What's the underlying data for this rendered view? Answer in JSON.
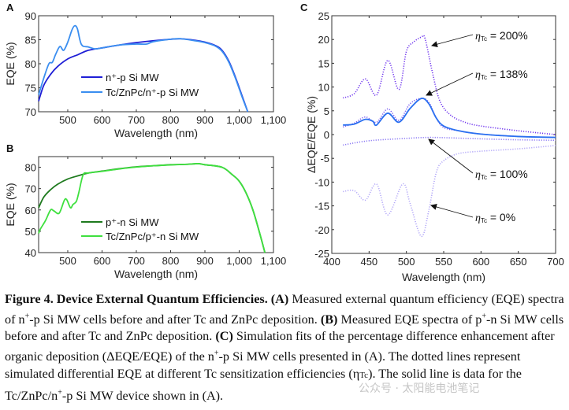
{
  "chart_data": [
    {
      "panel": "A",
      "type": "line",
      "xlabel": "Wavelength (nm)",
      "ylabel": "EQE (%)",
      "xlim": [
        415,
        1100
      ],
      "ylim": [
        70,
        90
      ],
      "xticks": [
        500,
        600,
        700,
        800,
        900,
        1000,
        1100
      ],
      "xtick_labels": [
        "500",
        "600",
        "700",
        "800",
        "900",
        "1,000",
        "1,100"
      ],
      "yticks": [
        70,
        75,
        80,
        85,
        90
      ],
      "legend_position": "center-left",
      "series": [
        {
          "name": "n⁺-p Si MW",
          "color": "#1f1fd6",
          "style": "solid",
          "x": [
            415,
            430,
            450,
            470,
            500,
            530,
            560,
            600,
            650,
            700,
            750,
            800,
            830,
            870,
            900,
            930,
            950,
            970,
            990,
            1010,
            1025
          ],
          "y": [
            72.2,
            75.5,
            77.8,
            79.4,
            81,
            81.9,
            82.8,
            83.3,
            83.9,
            84.4,
            84.8,
            85.1,
            85.2,
            84.9,
            84.5,
            83.8,
            82.8,
            80.5,
            77,
            73,
            70
          ]
        },
        {
          "name": "Tc/ZnPc/n⁺-p Si MW",
          "color": "#3a8ef0",
          "style": "solid",
          "x": [
            415,
            430,
            445,
            455,
            465,
            477,
            488,
            500,
            512,
            520,
            528,
            540,
            560,
            580,
            600,
            650,
            700,
            730,
            750,
            800,
            830,
            870,
            900,
            930,
            950,
            970,
            990,
            1010,
            1025
          ],
          "y": [
            73.5,
            77,
            80,
            80.3,
            82,
            83.6,
            82.8,
            84.5,
            87,
            87.9,
            87.3,
            84,
            83.5,
            83.1,
            83.3,
            83.9,
            84.1,
            84.1,
            84.6,
            85.1,
            85.2,
            84.8,
            84.4,
            83.7,
            82.6,
            80.3,
            76.8,
            72.8,
            70
          ]
        }
      ]
    },
    {
      "panel": "B",
      "type": "line",
      "xlabel": "Wavelength (nm)",
      "ylabel": "EQE (%)",
      "xlim": [
        415,
        1100
      ],
      "ylim": [
        40,
        85
      ],
      "xticks": [
        500,
        600,
        700,
        800,
        900,
        1000,
        1100
      ],
      "xtick_labels": [
        "500",
        "600",
        "700",
        "800",
        "900",
        "1,000",
        "1,100"
      ],
      "yticks": [
        40,
        50,
        60,
        70,
        80
      ],
      "legend_position": "center-left",
      "series": [
        {
          "name": "p⁺-n Si MW",
          "color": "#1e7a1e",
          "style": "solid",
          "x": [
            415,
            430,
            450,
            470,
            500,
            530,
            560,
            600,
            650,
            700,
            750,
            800,
            850,
            880,
            900,
            950,
            980,
            1000,
            1020,
            1040,
            1060,
            1075
          ],
          "y": [
            61,
            66,
            69.5,
            72,
            74.5,
            76,
            77.3,
            78.2,
            79.3,
            80.2,
            80.7,
            81.2,
            81.4,
            81.7,
            81.2,
            80,
            76.5,
            73.5,
            68,
            60,
            49,
            40
          ]
        },
        {
          "name": "Tc/ZnPc/p⁺-n Si MW",
          "color": "#3fe03f",
          "style": "solid",
          "x": [
            415,
            420,
            435,
            450,
            460,
            475,
            490,
            497,
            508,
            515,
            525,
            532,
            545,
            560,
            600,
            650,
            700,
            750,
            800,
            850,
            880,
            900,
            950,
            980,
            1000,
            1020,
            1040,
            1060,
            1075
          ],
          "y": [
            49,
            51,
            55,
            60,
            59.5,
            58.5,
            64.5,
            64.8,
            61,
            62.5,
            64,
            68,
            76.5,
            77.3,
            78.1,
            79.2,
            80.1,
            80.7,
            81.1,
            81.4,
            81.7,
            81.2,
            80,
            76.5,
            73.5,
            68,
            60,
            49,
            40
          ]
        }
      ]
    },
    {
      "panel": "C",
      "type": "line",
      "xlabel": "Wavelength (nm)",
      "ylabel": "ΔEQE/EQE (%)",
      "xlim": [
        400,
        700
      ],
      "ylim": [
        -25,
        25
      ],
      "xticks": [
        400,
        450,
        500,
        550,
        600,
        650,
        700
      ],
      "yticks": [
        -25,
        -20,
        -15,
        -10,
        -5,
        0,
        5,
        10,
        15,
        20,
        25
      ],
      "annotations": [
        {
          "label_prefix": "η",
          "label_sub": "Tc",
          "label_suffix": " = 200%",
          "target_series": "ηTc = 200%"
        },
        {
          "label_prefix": "η",
          "label_sub": "Tc",
          "label_suffix": " = 138%",
          "target_series": "ηTc = 138%"
        },
        {
          "label_prefix": "η",
          "label_sub": "Tc",
          "label_suffix": " = 100%",
          "target_series": "ηTc = 100%"
        },
        {
          "label_prefix": "η",
          "label_sub": "Tc",
          "label_suffix": " = 0%",
          "target_series": "ηTc = 0%"
        }
      ],
      "series": [
        {
          "name": "ηTc = 200%",
          "color": "#6f35ee",
          "style": "dotted",
          "x": [
            415,
            430,
            445,
            460,
            475,
            490,
            500,
            510,
            520,
            525,
            535,
            545,
            560,
            580,
            600,
            650,
            700
          ],
          "y": [
            7.7,
            8.6,
            11.7,
            8.3,
            15.6,
            9.5,
            17.5,
            19.5,
            20.5,
            20.2,
            13,
            7,
            4,
            2.5,
            1.8,
            0.8,
            0
          ]
        },
        {
          "name": "ηTc = 138%",
          "color": "#7b5cf0",
          "style": "dotted",
          "x": [
            415,
            430,
            445,
            460,
            475,
            490,
            505,
            520,
            530,
            540,
            550,
            570,
            600,
            650,
            700
          ],
          "y": [
            1.6,
            2.4,
            3.7,
            2.6,
            5.4,
            3,
            6.5,
            7.6,
            6.8,
            3.5,
            1.5,
            0.8,
            0.1,
            -0.4,
            -0.6
          ]
        },
        {
          "name": "Data (Tc/ZnPc/n⁺-p Si MW)",
          "color": "#2a6ff0",
          "style": "solid",
          "x": [
            415,
            430,
            445,
            455,
            460,
            475,
            490,
            505,
            520,
            530,
            540,
            550,
            570,
            600,
            650,
            700
          ],
          "y": [
            2,
            2.2,
            3.2,
            2.8,
            2,
            4.5,
            2.6,
            5.5,
            7.6,
            6.5,
            3.5,
            1.8,
            0.8,
            0.1,
            -0.4,
            -0.6
          ]
        },
        {
          "name": "ηTc = 100%",
          "color": "#8c7af4",
          "style": "dotted",
          "x": [
            415,
            450,
            500,
            530,
            560,
            600,
            650,
            700
          ],
          "y": [
            -2.2,
            -1.3,
            -0.8,
            -0.6,
            -0.7,
            -0.9,
            -1.1,
            -1.2
          ]
        },
        {
          "name": "ηTc = 0%",
          "color": "#b3a8f8",
          "style": "dotted",
          "x": [
            415,
            430,
            445,
            460,
            475,
            495,
            505,
            520,
            530,
            540,
            550,
            570,
            600,
            650,
            700
          ],
          "y": [
            -12,
            -11.8,
            -13.8,
            -10.4,
            -16.9,
            -10.4,
            -14.5,
            -21.4,
            -16,
            -8,
            -5.5,
            -4,
            -3.5,
            -3,
            -2.3
          ]
        }
      ]
    }
  ],
  "panels": {
    "A": {
      "label": "A",
      "ylabel": "EQE (%)",
      "xlabel": "Wavelength (nm)",
      "legend": [
        "n⁺-p Si MW",
        "Tc/ZnPc/n⁺-p Si MW"
      ]
    },
    "B": {
      "label": "B",
      "ylabel": "EQE (%)",
      "xlabel": "Wavelength (nm)",
      "legend": [
        "p⁺-n Si MW",
        "Tc/ZnPc/p⁺-n Si MW"
      ]
    },
    "C": {
      "label": "C",
      "ylabel": "ΔEQE/EQE (%)",
      "xlabel": "Wavelength (nm)"
    }
  },
  "caption": {
    "title": "Figure 4. Device External Quantum Efficiencies.",
    "text_html_parts": [
      {
        "b": "(A)"
      },
      {
        "t": " Measured external quantum efficiency (EQE) spectra of n"
      },
      {
        "sup": "+"
      },
      {
        "t": "-p Si MW cells before and after Tc and ZnPc deposition. "
      },
      {
        "b": "(B)"
      },
      {
        "t": " Measured EQE spectra of p"
      },
      {
        "sup": "+"
      },
      {
        "t": "-n Si MW cells before and after Tc and ZnPc deposition. "
      },
      {
        "b": "(C)"
      },
      {
        "t": " Simulation fits of the percentage difference enhancement after organic deposition (ΔEQE/EQE) of the n"
      },
      {
        "sup": "+"
      },
      {
        "t": "-p Si MW cells presented in (A). The dotted lines represent simulated differential EQE at different Tc sensitization efficiencies (η"
      },
      {
        "small": "Tc"
      },
      {
        "t": "). The solid line is data for the Tc/ZnPc/n"
      },
      {
        "sup": "+"
      },
      {
        "t": "-p Si MW device shown in (A)."
      }
    ]
  },
  "watermark": "公众号 · 太阳能电池笔记"
}
